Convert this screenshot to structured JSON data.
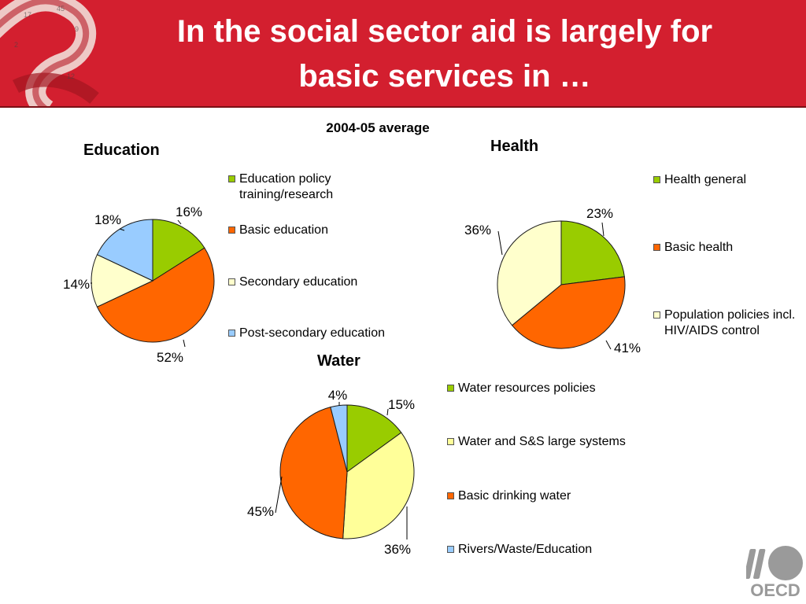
{
  "header": {
    "title_line1": "In the social sector aid is largely for",
    "title_line2": "basic services in …"
  },
  "subtitle": "2004-05 average",
  "colors": {
    "banner": "#d31f2f",
    "green": "#99cc00",
    "orange": "#ff6600",
    "cream": "#ffffcc",
    "yellow": "#ffff99",
    "blue": "#99ccff"
  },
  "logo": {
    "text": "OECD"
  },
  "chart_data": [
    {
      "type": "pie",
      "title": "Education",
      "slices": [
        {
          "label": "Education policy training/research",
          "value": 16,
          "color": "#99cc00"
        },
        {
          "label": "Basic education",
          "value": 52,
          "color": "#ff6600"
        },
        {
          "label": "Secondary education",
          "value": 14,
          "color": "#ffffcc"
        },
        {
          "label": "Post-secondary education",
          "value": 18,
          "color": "#99ccff"
        }
      ],
      "legend_position": "right"
    },
    {
      "type": "pie",
      "title": "Health",
      "slices": [
        {
          "label": "Health general",
          "value": 23,
          "color": "#99cc00"
        },
        {
          "label": "Basic health",
          "value": 41,
          "color": "#ff6600"
        },
        {
          "label": "Population policies incl. HIV/AIDS control",
          "value": 36,
          "color": "#ffffcc"
        }
      ],
      "legend_position": "right"
    },
    {
      "type": "pie",
      "title": "Water",
      "slices": [
        {
          "label": "Water resources policies",
          "value": 15,
          "color": "#99cc00"
        },
        {
          "label": "Water and S&S large systems",
          "value": 36,
          "color": "#ffff99"
        },
        {
          "label": "Basic drinking water",
          "value": 45,
          "color": "#ff6600"
        },
        {
          "label": "Rivers/Waste/Education",
          "value": 4,
          "color": "#99ccff"
        }
      ],
      "legend_position": "right"
    }
  ]
}
